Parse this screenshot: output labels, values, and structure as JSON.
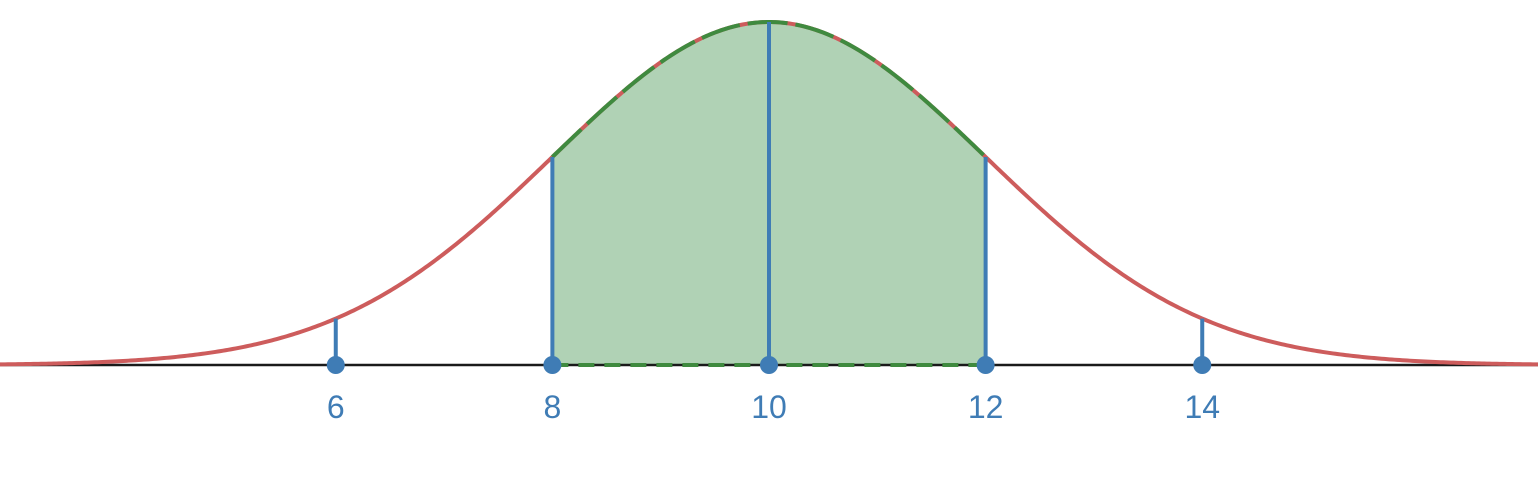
{
  "chart_data": {
    "type": "area",
    "distribution": "normal",
    "mean": 10,
    "sd": 2,
    "xlim": [
      2.9,
      17.1
    ],
    "ticks": [
      {
        "value": 6,
        "label": "6"
      },
      {
        "value": 8,
        "label": "8"
      },
      {
        "value": 10,
        "label": "10"
      },
      {
        "value": 12,
        "label": "12"
      },
      {
        "value": 14,
        "label": "14"
      }
    ],
    "shaded_interval": [
      8,
      12
    ],
    "title": "",
    "xlabel": "",
    "ylabel": "",
    "grid": false,
    "colors": {
      "curve": "#cd5c5c",
      "shade_fill": "#b0d2b5",
      "shade_edge": "#3f8a3f",
      "markers": "#3f7cb5",
      "axis": "#1a1a1a"
    }
  }
}
